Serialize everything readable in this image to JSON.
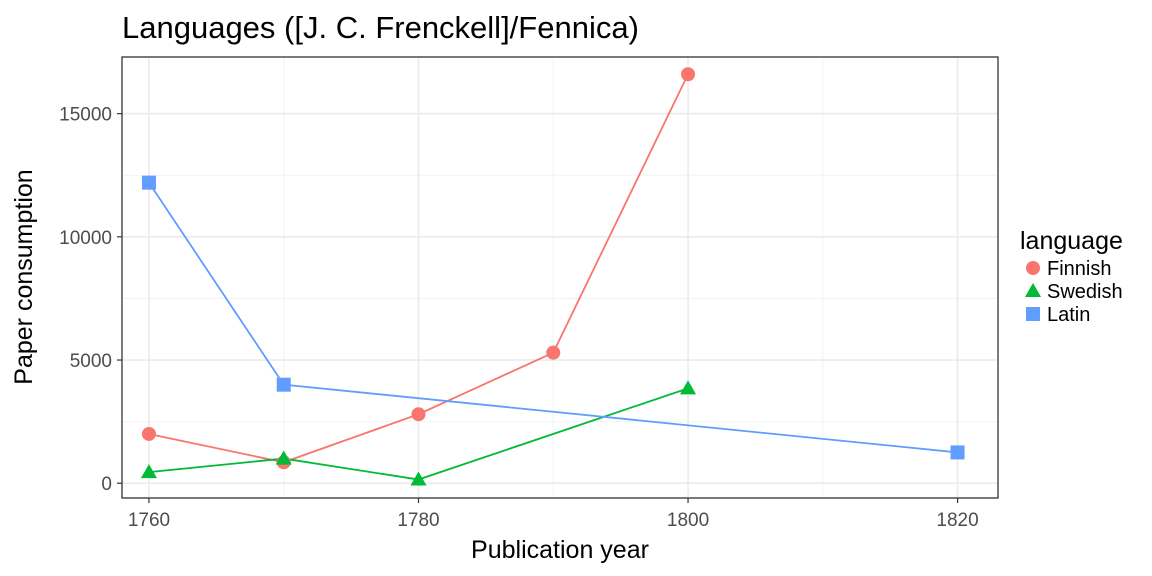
{
  "chart_data": {
    "type": "line",
    "title": "Languages ([J. C. Frenckell]/Fennica)",
    "xlabel": "Publication year",
    "ylabel": "Paper consumption",
    "xlim": [
      1758,
      1823
    ],
    "ylim": [
      -600,
      17300
    ],
    "x_ticks": [
      1760,
      1780,
      1800,
      1820
    ],
    "x_minor": [
      1770,
      1790,
      1810
    ],
    "y_ticks": [
      0,
      5000,
      10000,
      15000
    ],
    "y_minor": [
      2500,
      7500,
      12500
    ],
    "grid": true,
    "legend": {
      "title": "language",
      "position": "right"
    },
    "series": [
      {
        "name": "Finnish",
        "color": "#F8766D",
        "marker": "circle",
        "x": [
          1760,
          1770,
          1780,
          1790,
          1800
        ],
        "y": [
          2000,
          850,
          2800,
          5300,
          16600
        ]
      },
      {
        "name": "Swedish",
        "color": "#00BA38",
        "marker": "triangle",
        "x": [
          1760,
          1770,
          1780,
          1800
        ],
        "y": [
          450,
          1000,
          150,
          3850
        ]
      },
      {
        "name": "Latin",
        "color": "#619CFF",
        "marker": "square",
        "x": [
          1760,
          1770,
          1820
        ],
        "y": [
          12200,
          4000,
          1250
        ]
      }
    ]
  }
}
